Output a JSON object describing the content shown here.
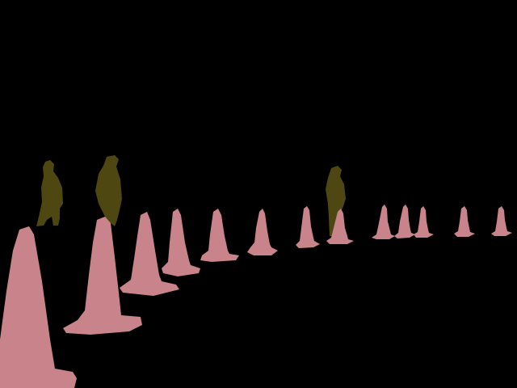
{
  "image": {
    "kind": "segmentation-mask",
    "background_color": "#000000",
    "classes": [
      {
        "name": "traffic-cone",
        "color": "#c8848a",
        "count": 13
      },
      {
        "name": "person",
        "color": "#4f4711",
        "count": 3
      }
    ]
  }
}
